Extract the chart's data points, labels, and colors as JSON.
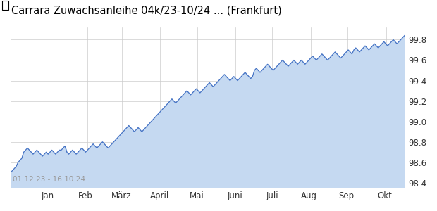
{
  "title": "Carrara Zuwachsanleihe 04k/23-10/24 ... (Frankfurt)",
  "title_color": "#000000",
  "date_range_label": "01.12.23 - 16.10.24",
  "x_tick_labels": [
    "Jan.",
    "Feb.",
    "März",
    "April",
    "Mai",
    "Juni",
    "Juli",
    "Aug.",
    "Sep.",
    "Okt."
  ],
  "month_tick_positions": [
    31,
    62,
    90,
    121,
    151,
    182,
    212,
    243,
    273,
    304
  ],
  "y_tick_values": [
    98.4,
    98.6,
    98.8,
    99.0,
    99.2,
    99.4,
    99.6,
    99.8
  ],
  "ylim": [
    98.35,
    99.92
  ],
  "fill_baseline": 98.35,
  "total_days": 319,
  "line_color": "#4472C4",
  "fill_color": "#C5D9F1",
  "background_color": "#FFFFFF",
  "grid_color": "#CCCCCC",
  "title_fontsize": 10.5,
  "tick_fontsize": 8.5,
  "date_label_fontsize": 7.5,
  "series_y": [
    98.5,
    98.52,
    98.54,
    98.56,
    98.6,
    98.62,
    98.64,
    98.7,
    98.72,
    98.74,
    98.72,
    98.7,
    98.68,
    98.7,
    98.72,
    98.7,
    98.68,
    98.66,
    98.68,
    98.7,
    98.68,
    98.7,
    98.72,
    98.7,
    98.68,
    98.7,
    98.72,
    98.72,
    98.74,
    98.76,
    98.7,
    98.68,
    98.7,
    98.72,
    98.7,
    98.68,
    98.7,
    98.72,
    98.74,
    98.72,
    98.7,
    98.72,
    98.74,
    98.76,
    98.78,
    98.76,
    98.74,
    98.76,
    98.78,
    98.8,
    98.78,
    98.76,
    98.74,
    98.76,
    98.78,
    98.8,
    98.82,
    98.84,
    98.86,
    98.88,
    98.9,
    98.92,
    98.94,
    98.96,
    98.94,
    98.92,
    98.9,
    98.92,
    98.94,
    98.92,
    98.9,
    98.92,
    98.94,
    98.96,
    98.98,
    99.0,
    99.02,
    99.04,
    99.06,
    99.08,
    99.1,
    99.12,
    99.14,
    99.16,
    99.18,
    99.2,
    99.22,
    99.2,
    99.18,
    99.2,
    99.22,
    99.24,
    99.26,
    99.28,
    99.3,
    99.28,
    99.26,
    99.28,
    99.3,
    99.32,
    99.3,
    99.28,
    99.3,
    99.32,
    99.34,
    99.36,
    99.38,
    99.36,
    99.34,
    99.36,
    99.38,
    99.4,
    99.42,
    99.44,
    99.46,
    99.44,
    99.42,
    99.4,
    99.42,
    99.44,
    99.42,
    99.4,
    99.42,
    99.44,
    99.46,
    99.48,
    99.46,
    99.44,
    99.42,
    99.44,
    99.5,
    99.52,
    99.5,
    99.48,
    99.5,
    99.52,
    99.54,
    99.56,
    99.54,
    99.52,
    99.5,
    99.52,
    99.54,
    99.56,
    99.58,
    99.6,
    99.58,
    99.56,
    99.54,
    99.56,
    99.58,
    99.6,
    99.58,
    99.56,
    99.58,
    99.6,
    99.58,
    99.56,
    99.58,
    99.6,
    99.62,
    99.64,
    99.62,
    99.6,
    99.62,
    99.64,
    99.66,
    99.64,
    99.62,
    99.6,
    99.62,
    99.64,
    99.66,
    99.68,
    99.66,
    99.64,
    99.62,
    99.64,
    99.66,
    99.68,
    99.7,
    99.68,
    99.66,
    99.7,
    99.72,
    99.7,
    99.68,
    99.7,
    99.72,
    99.74,
    99.72,
    99.7,
    99.72,
    99.74,
    99.76,
    99.74,
    99.72,
    99.74,
    99.76,
    99.78,
    99.76,
    99.74,
    99.76,
    99.78,
    99.8,
    99.78,
    99.76,
    99.78,
    99.8,
    99.82,
    99.84
  ]
}
